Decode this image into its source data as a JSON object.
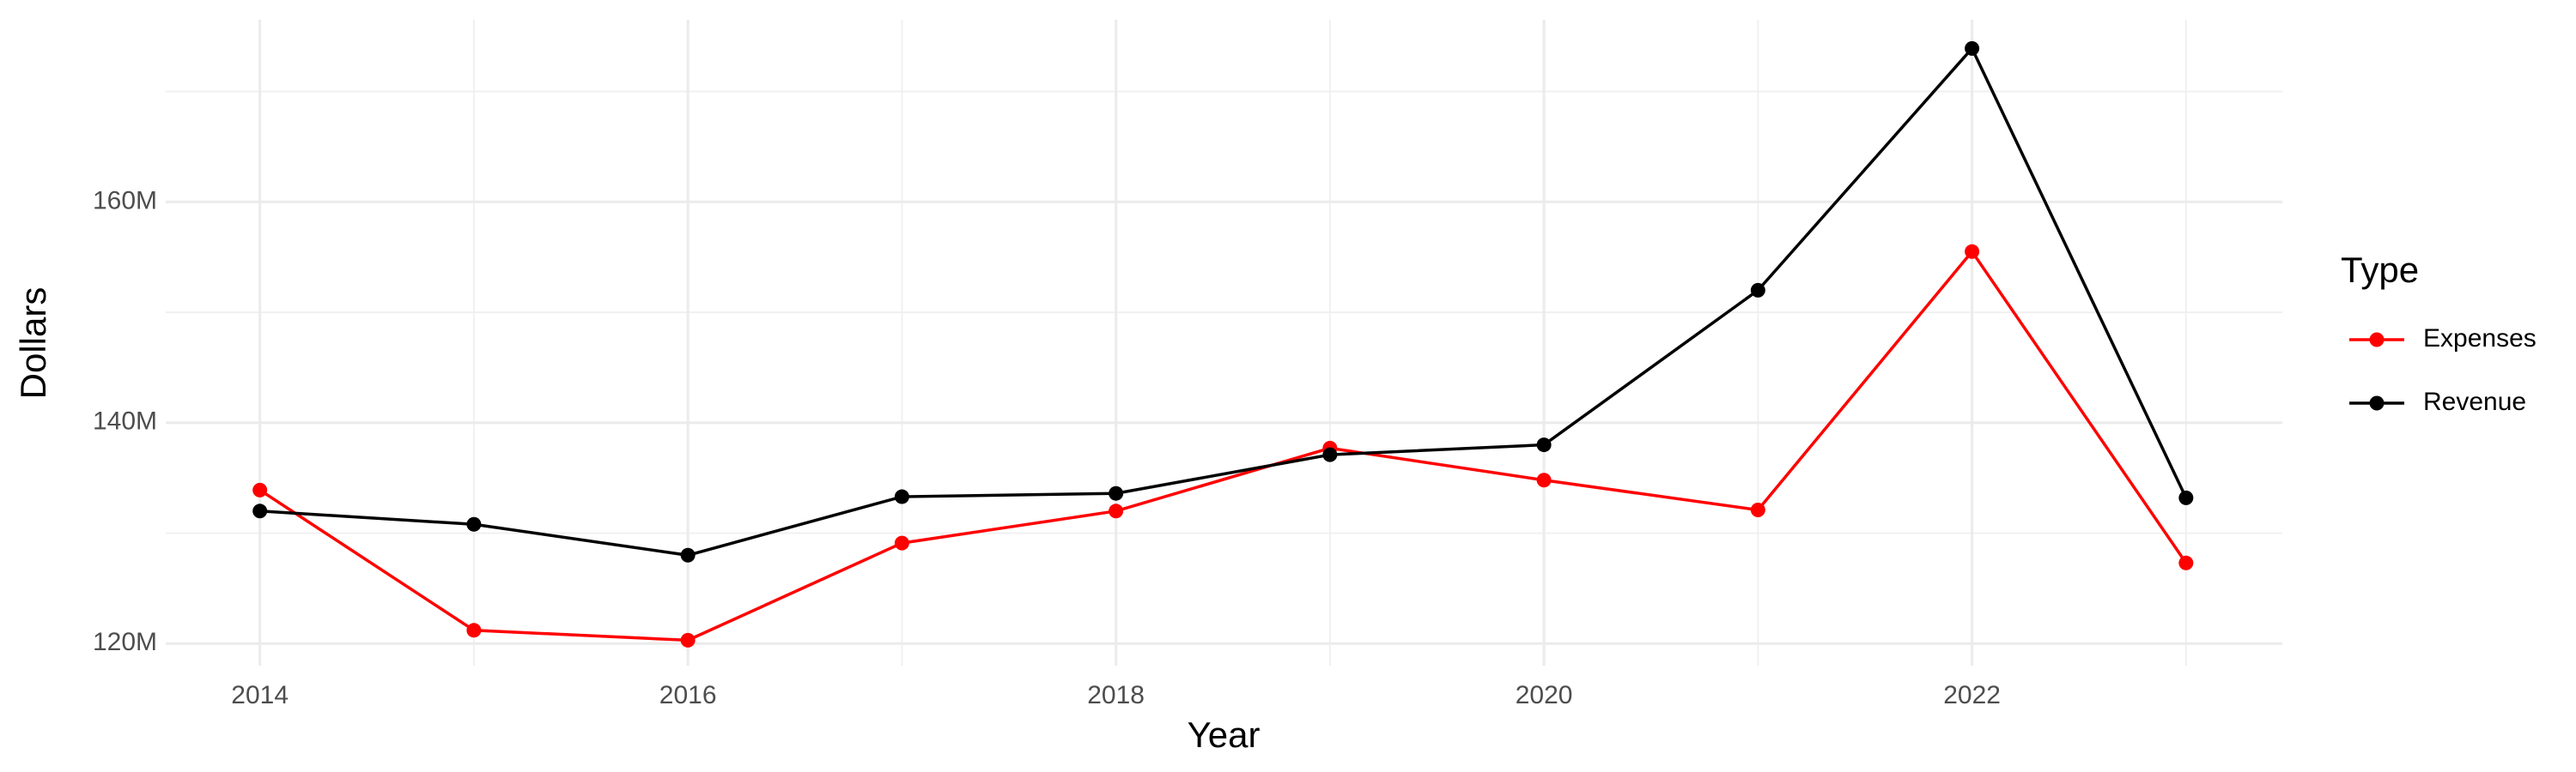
{
  "chart_data": {
    "type": "line",
    "x_label": "Year",
    "y_label": "Dollars",
    "x": [
      2014,
      2015,
      2016,
      2017,
      2018,
      2019,
      2020,
      2021,
      2022,
      2023
    ],
    "series": [
      {
        "name": "Expenses",
        "color": "#ff0000",
        "values": [
          133900000,
          121200000,
          120300000,
          129100000,
          132000000,
          137700000,
          134800000,
          132100000,
          155500000,
          127300000
        ]
      },
      {
        "name": "Revenue",
        "color": "#000000",
        "values": [
          132000000,
          130800000,
          128000000,
          133300000,
          133600000,
          137100000,
          138000000,
          152000000,
          173900000,
          133200000
        ]
      }
    ],
    "xlim": [
      2013.56,
      2023.45
    ],
    "xticks": [
      2014,
      2016,
      2018,
      2020,
      2022
    ],
    "ylim": [
      118000000,
      176500000
    ],
    "yticks": [
      {
        "value": 120000000,
        "label": "120M"
      },
      {
        "value": 140000000,
        "label": "140M"
      },
      {
        "value": 160000000,
        "label": "160M"
      }
    ],
    "grid": true,
    "legend_title": "Type",
    "legend_position": "right"
  }
}
